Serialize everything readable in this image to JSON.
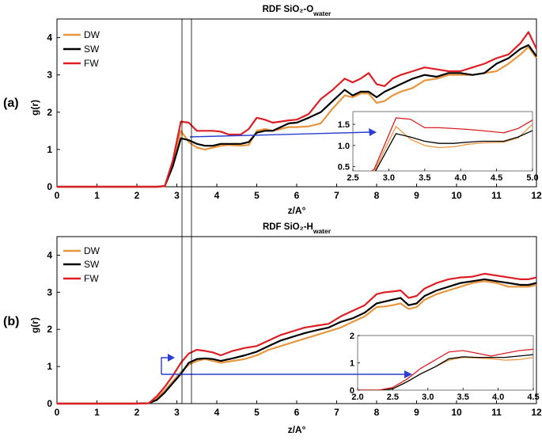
{
  "chart_data": [
    {
      "type": "line",
      "panel_label": "(a)",
      "title": "RDF SiO₂-O",
      "title_subscript": "water",
      "xlabel": "z/A°",
      "ylabel": "g(r)",
      "xlim": [
        0,
        12
      ],
      "ylim": [
        0,
        4.5
      ],
      "xticks": [
        "0",
        "1",
        "2",
        "3",
        "4",
        "5",
        "6",
        "7",
        "8",
        "9",
        "10",
        "11",
        "12"
      ],
      "yticks": [
        "0",
        "1",
        "2",
        "3",
        "4"
      ],
      "legend_position": "top-left",
      "x": [
        0,
        0.5,
        1,
        1.5,
        2,
        2.5,
        2.7,
        2.9,
        3.1,
        3.3,
        3.5,
        3.7,
        3.9,
        4.1,
        4.3,
        4.6,
        4.8,
        5.0,
        5.2,
        5.4,
        5.6,
        5.8,
        6.0,
        6.3,
        6.6,
        6.9,
        7.2,
        7.4,
        7.6,
        7.8,
        8.0,
        8.2,
        8.4,
        8.6,
        8.9,
        9.2,
        9.5,
        9.8,
        10.1,
        10.4,
        10.7,
        11.0,
        11.3,
        11.6,
        11.8,
        12.0
      ],
      "series": [
        {
          "name": "DW",
          "color": "#e8963e",
          "values": [
            0,
            0,
            0,
            0,
            0,
            0,
            0.02,
            0.6,
            1.5,
            1.2,
            1.05,
            1.0,
            1.05,
            1.1,
            1.12,
            1.1,
            1.12,
            1.5,
            1.55,
            1.5,
            1.55,
            1.6,
            1.6,
            1.62,
            1.7,
            2.1,
            2.45,
            2.4,
            2.5,
            2.5,
            2.25,
            2.3,
            2.45,
            2.55,
            2.65,
            2.85,
            2.9,
            3.0,
            3.0,
            3.0,
            3.05,
            3.1,
            3.3,
            3.55,
            3.75,
            3.45
          ]
        },
        {
          "name": "SW",
          "color": "#000000",
          "values": [
            0,
            0,
            0,
            0,
            0,
            0,
            0.02,
            0.55,
            1.3,
            1.25,
            1.15,
            1.1,
            1.1,
            1.15,
            1.15,
            1.15,
            1.2,
            1.45,
            1.5,
            1.5,
            1.6,
            1.7,
            1.72,
            1.85,
            2.0,
            2.3,
            2.6,
            2.45,
            2.55,
            2.55,
            2.4,
            2.55,
            2.65,
            2.75,
            2.9,
            3.0,
            2.95,
            3.05,
            3.05,
            3.0,
            3.05,
            3.3,
            3.45,
            3.7,
            3.8,
            3.5
          ]
        },
        {
          "name": "FW",
          "color": "#dd1e24",
          "values": [
            0,
            0,
            0,
            0,
            0,
            0,
            0.02,
            0.7,
            1.75,
            1.72,
            1.5,
            1.5,
            1.5,
            1.48,
            1.4,
            1.4,
            1.55,
            1.85,
            1.8,
            1.72,
            1.75,
            1.78,
            1.8,
            1.95,
            2.35,
            2.6,
            2.9,
            2.8,
            2.9,
            3.05,
            2.75,
            2.7,
            2.9,
            3.0,
            3.1,
            3.2,
            3.15,
            3.1,
            3.1,
            3.2,
            3.3,
            3.45,
            3.55,
            3.85,
            4.15,
            3.7
          ]
        }
      ],
      "inset": {
        "xlim": [
          2.5,
          5.0
        ],
        "ylim": [
          0.4,
          1.8
        ],
        "xticks": [
          "2.5",
          "3.0",
          "3.5",
          "4.0",
          "4.5",
          "5.0"
        ],
        "yticks": [
          "0.5",
          "1.0",
          "1.5"
        ],
        "x": [
          2.5,
          2.8,
          3.1,
          3.3,
          3.5,
          3.7,
          3.9,
          4.1,
          4.3,
          4.6,
          4.8,
          5.0
        ],
        "series": [
          {
            "name": "DW",
            "color": "#e8963e",
            "values": [
              0,
              0.4,
              1.45,
              1.15,
              1.0,
              0.95,
              0.97,
              1.03,
              1.06,
              1.08,
              1.18,
              1.5
            ]
          },
          {
            "name": "SW",
            "color": "#000000",
            "values": [
              0,
              0.35,
              1.28,
              1.2,
              1.1,
              1.05,
              1.05,
              1.08,
              1.1,
              1.1,
              1.2,
              1.35
            ]
          },
          {
            "name": "FW",
            "color": "#dd1e24",
            "values": [
              0,
              0.45,
              1.65,
              1.62,
              1.42,
              1.42,
              1.4,
              1.38,
              1.35,
              1.3,
              1.4,
              1.6
            ]
          }
        ]
      }
    },
    {
      "type": "line",
      "panel_label": "(b)",
      "title": "RDF SiO₂-H",
      "title_subscript": "water",
      "xlabel": "z/A°",
      "ylabel": "g(r)",
      "xlim": [
        0,
        12
      ],
      "ylim": [
        0,
        4.5
      ],
      "xticks": [
        "0",
        "1",
        "2",
        "3",
        "4",
        "5",
        "6",
        "7",
        "8",
        "9",
        "10",
        "11",
        "12"
      ],
      "yticks": [
        "0",
        "1",
        "2",
        "3",
        "4"
      ],
      "legend_position": "top-left",
      "x": [
        0,
        0.5,
        1,
        1.5,
        2,
        2.3,
        2.5,
        2.7,
        2.9,
        3.1,
        3.3,
        3.5,
        3.7,
        3.9,
        4.1,
        4.4,
        4.7,
        5.0,
        5.3,
        5.6,
        5.9,
        6.2,
        6.5,
        6.8,
        7.1,
        7.4,
        7.7,
        8.0,
        8.2,
        8.4,
        8.6,
        8.8,
        9.0,
        9.2,
        9.5,
        9.8,
        10.1,
        10.4,
        10.7,
        11.0,
        11.3,
        11.6,
        11.8,
        12.0
      ],
      "series": [
        {
          "name": "DW",
          "color": "#e8963e",
          "values": [
            0,
            0,
            0,
            0,
            0,
            0.01,
            0.15,
            0.35,
            0.6,
            0.85,
            1.05,
            1.15,
            1.2,
            1.15,
            1.1,
            1.15,
            1.2,
            1.3,
            1.45,
            1.55,
            1.65,
            1.75,
            1.85,
            1.95,
            2.05,
            2.2,
            2.35,
            2.6,
            2.62,
            2.65,
            2.7,
            2.55,
            2.6,
            2.8,
            2.95,
            3.05,
            3.15,
            3.25,
            3.3,
            3.25,
            3.15,
            3.15,
            3.15,
            3.2
          ]
        },
        {
          "name": "SW",
          "color": "#000000",
          "values": [
            0,
            0,
            0,
            0,
            0,
            0.01,
            0.1,
            0.3,
            0.55,
            0.8,
            1.1,
            1.2,
            1.22,
            1.2,
            1.15,
            1.22,
            1.3,
            1.4,
            1.55,
            1.7,
            1.8,
            1.9,
            1.98,
            2.05,
            2.2,
            2.3,
            2.45,
            2.7,
            2.75,
            2.8,
            2.85,
            2.65,
            2.7,
            2.9,
            3.05,
            3.15,
            3.25,
            3.3,
            3.35,
            3.3,
            3.25,
            3.2,
            3.2,
            3.25
          ]
        },
        {
          "name": "FW",
          "color": "#dd1e24",
          "values": [
            0,
            0,
            0,
            0,
            0,
            0.01,
            0.2,
            0.45,
            0.75,
            1.1,
            1.35,
            1.45,
            1.42,
            1.38,
            1.3,
            1.42,
            1.5,
            1.55,
            1.7,
            1.85,
            1.95,
            2.05,
            2.1,
            2.15,
            2.35,
            2.5,
            2.65,
            2.95,
            3.0,
            3.02,
            3.05,
            2.85,
            2.9,
            3.1,
            3.25,
            3.35,
            3.4,
            3.42,
            3.5,
            3.45,
            3.4,
            3.35,
            3.35,
            3.4
          ]
        }
      ],
      "inset": {
        "xlim": [
          2.0,
          4.5
        ],
        "ylim": [
          0,
          2
        ],
        "xticks": [
          "2.0",
          "2.5",
          "3.0",
          "3.5",
          "4.0",
          "4.5"
        ],
        "yticks": [
          "0",
          "1",
          "2"
        ],
        "x": [
          2.0,
          2.3,
          2.5,
          2.7,
          2.9,
          3.1,
          3.3,
          3.5,
          3.7,
          3.9,
          4.1,
          4.3,
          4.5
        ],
        "series": [
          {
            "name": "DW",
            "color": "#e8963e",
            "values": [
              0,
              0,
              0.05,
              0.3,
              0.6,
              0.85,
              1.1,
              1.2,
              1.18,
              1.15,
              1.1,
              1.12,
              1.2
            ]
          },
          {
            "name": "SW",
            "color": "#000000",
            "values": [
              0,
              0,
              0.05,
              0.3,
              0.6,
              0.85,
              1.15,
              1.22,
              1.2,
              1.2,
              1.2,
              1.25,
              1.3
            ]
          },
          {
            "name": "FW",
            "color": "#dd1e24",
            "values": [
              0,
              0,
              0.1,
              0.4,
              0.8,
              1.1,
              1.4,
              1.45,
              1.35,
              1.25,
              1.35,
              1.45,
              1.5
            ]
          }
        ]
      }
    }
  ]
}
